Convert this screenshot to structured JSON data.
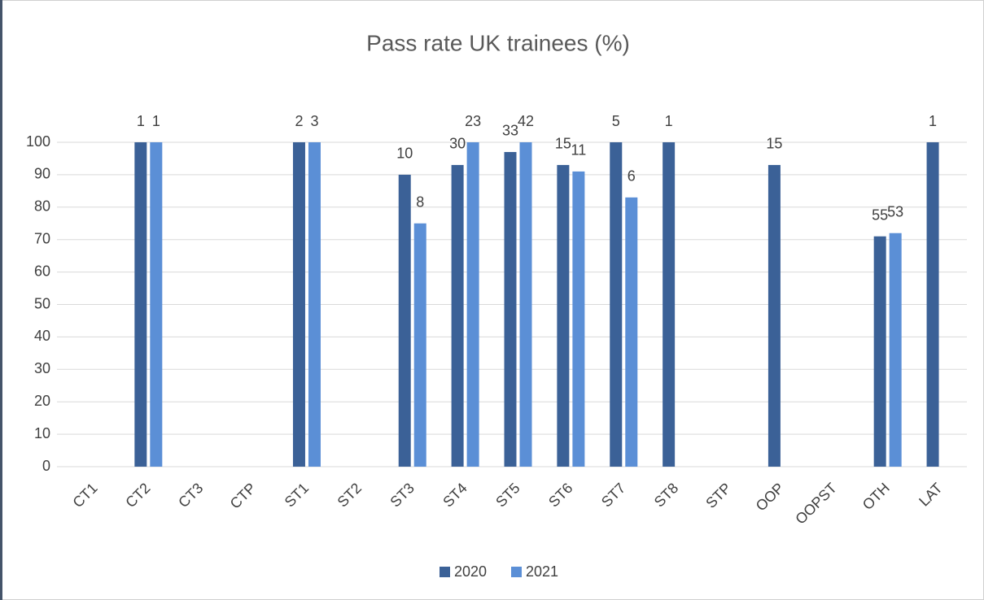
{
  "chart_data": {
    "type": "bar",
    "title": "Pass rate UK trainees (%)",
    "categories": [
      "CT1",
      "CT2",
      "CT3",
      "CTP",
      "ST1",
      "ST2",
      "ST3",
      "ST4",
      "ST5",
      "ST6",
      "ST7",
      "ST8",
      "STP",
      "OOP",
      "OOPST",
      "OTH",
      "LAT"
    ],
    "series": [
      {
        "name": "2020",
        "color": "#3b6197",
        "values": [
          null,
          100,
          null,
          null,
          100,
          null,
          90,
          93,
          97,
          93,
          100,
          100,
          null,
          93,
          null,
          71,
          100
        ],
        "annotations": [
          null,
          1,
          null,
          null,
          2,
          null,
          10,
          30,
          33,
          15,
          5,
          1,
          null,
          15,
          null,
          55,
          1
        ]
      },
      {
        "name": "2021",
        "color": "#5b8fd6",
        "values": [
          null,
          100,
          null,
          null,
          100,
          null,
          75,
          100,
          100,
          91,
          83,
          null,
          null,
          null,
          null,
          72,
          null
        ],
        "annotations": [
          null,
          1,
          null,
          null,
          3,
          null,
          8,
          23,
          42,
          11,
          6,
          null,
          null,
          null,
          null,
          53,
          null
        ]
      }
    ],
    "ylim": [
      0,
      100
    ],
    "yticks": [
      0,
      10,
      20,
      30,
      40,
      50,
      60,
      70,
      80,
      90,
      100
    ],
    "grid": true,
    "legend": "bottom"
  }
}
